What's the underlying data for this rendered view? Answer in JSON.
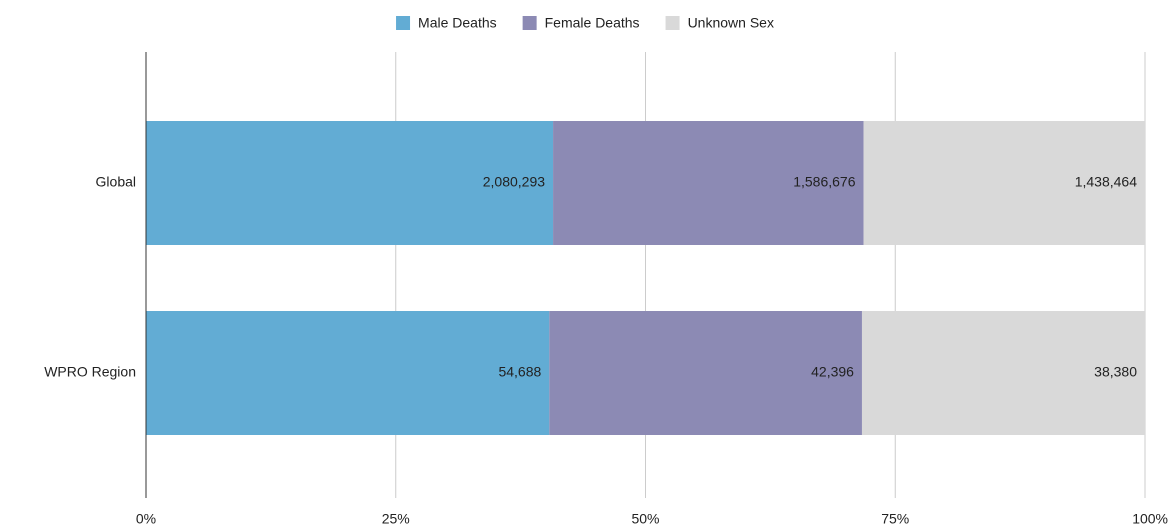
{
  "chart_data": {
    "type": "bar",
    "orientation": "horizontal",
    "stacking": "percent",
    "categories": [
      "Global",
      "WPRO Region"
    ],
    "series": [
      {
        "name": "Male Deaths",
        "color": "#62acd4",
        "values": [
          2080293,
          54688
        ],
        "value_labels": [
          "2,080,293",
          "54,688"
        ]
      },
      {
        "name": "Female Deaths",
        "color": "#8c8ab4",
        "values": [
          1586676,
          42396
        ],
        "value_labels": [
          "1,586,676",
          "42,396"
        ]
      },
      {
        "name": "Unknown Sex",
        "color": "#d9d9d9",
        "values": [
          1438464,
          38380
        ],
        "value_labels": [
          "1,438,464",
          "38,380"
        ]
      }
    ],
    "xlim": [
      0,
      100
    ],
    "xticks": [
      {
        "value": 0,
        "label": "0%"
      },
      {
        "value": 25,
        "label": "25%"
      },
      {
        "value": 50,
        "label": "50%"
      },
      {
        "value": 75,
        "label": "75%"
      },
      {
        "value": 100,
        "label": "100%"
      }
    ],
    "grid": true,
    "legend": "top"
  }
}
